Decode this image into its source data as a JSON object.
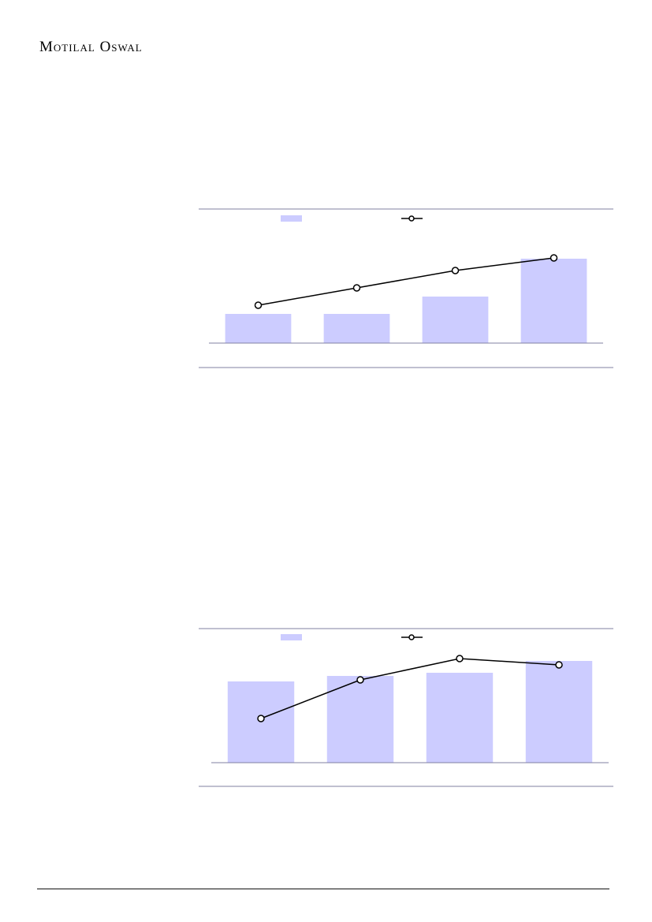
{
  "header": {
    "brand": "Motilal Oswal"
  },
  "chart_data": [
    {
      "type": "bar_line",
      "categories": [
        null,
        null,
        null,
        null
      ],
      "ylim": [
        0,
        150
      ],
      "y2lim": [
        0,
        150
      ],
      "series": [
        {
          "color": "#ccccff",
          "values": [
            37,
            37,
            59,
            107
          ]
        },
        {
          "color": "#000000",
          "axis": "y2",
          "values": [
            48,
            70,
            92,
            108
          ]
        }
      ]
    },
    {
      "type": "bar_line",
      "categories": [
        null,
        null,
        null,
        null
      ],
      "ylim": [
        0,
        150
      ],
      "y2lim": [
        0,
        150
      ],
      "series": [
        {
          "color": "#ccccff",
          "values": [
            103,
            110,
            114,
            129
          ]
        },
        {
          "color": "#000000",
          "axis": "y2",
          "values": [
            56,
            105,
            132,
            124
          ]
        }
      ]
    }
  ]
}
